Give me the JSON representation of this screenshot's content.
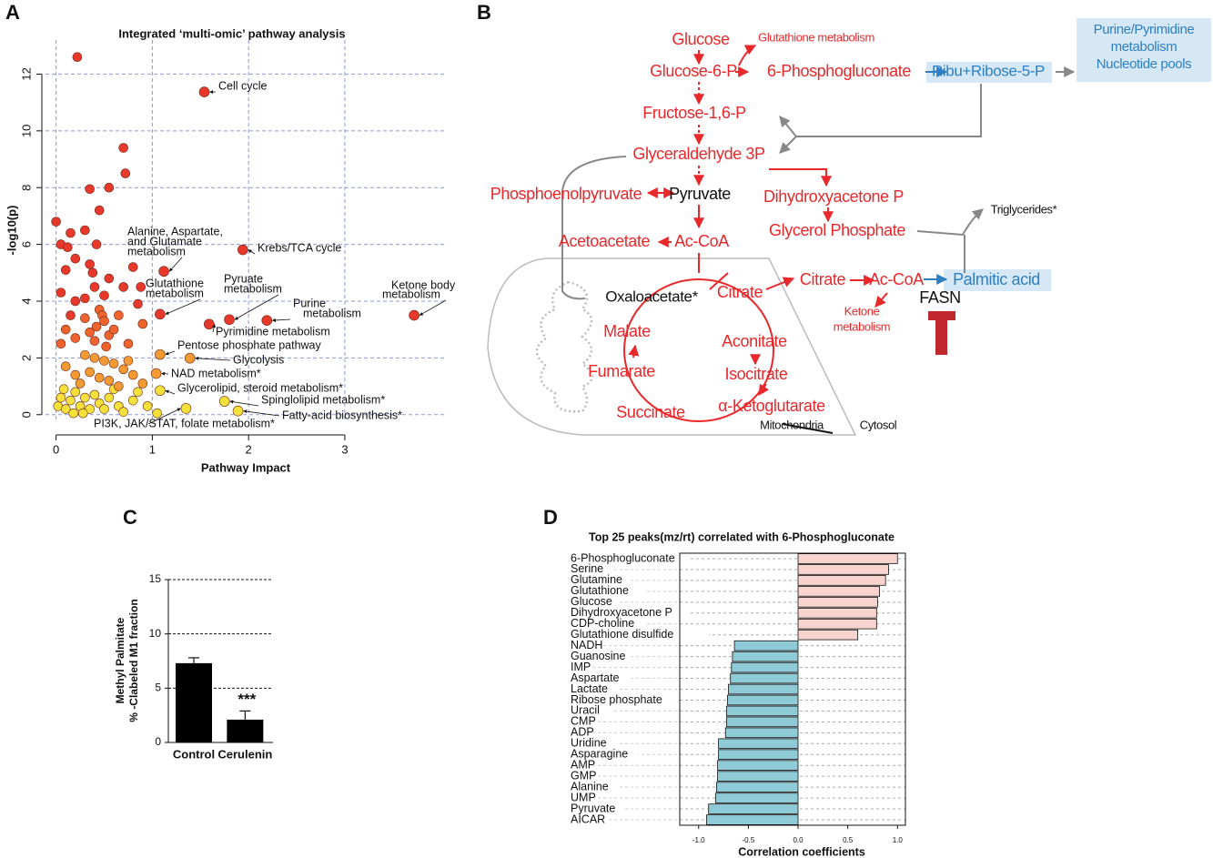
{
  "chart_data": [
    {
      "type": "scatter",
      "panel": "A",
      "title": "Integrated ‘multi-omic’ pathway analysis",
      "xlabel": "Pathway Impact",
      "ylabel": "-log10(p)",
      "xlim": [
        -0.11,
        4.05
      ],
      "ylim": [
        -0.2,
        13.2
      ],
      "xticks": [
        0,
        1,
        2,
        3
      ],
      "yticks": [
        0,
        2,
        4,
        6,
        8,
        10,
        12
      ],
      "grid": true,
      "series": [
        {
          "color": "#e8382b",
          "x": [
            0.22,
            0.7,
            0.72,
            0.55,
            0.35,
            0.45,
            0.42,
            0.3,
            0.15,
            0.0,
            0.05,
            0.12,
            0.2,
            0.1,
            0.35,
            0.38,
            0.55,
            0.8,
            0.88,
            0.7,
            0.5,
            0.3,
            0.05,
            0.2,
            0.15,
            0.4,
            0.85
          ],
          "values": [
            12.6,
            9.4,
            8.5,
            8.0,
            7.95,
            7.2,
            6.0,
            6.5,
            6.4,
            6.8,
            6.0,
            5.9,
            5.5,
            5.1,
            5.3,
            5.0,
            4.8,
            5.2,
            4.5,
            4.5,
            4.2,
            4.1,
            4.3,
            4.0,
            3.5,
            4.5,
            3.9
          ]
        },
        {
          "color": "#ee642c",
          "x": [
            0.45,
            0.48,
            0.5,
            0.42,
            0.35,
            0.55,
            0.6,
            0.65,
            0.3,
            0.1,
            0.2,
            0.05,
            0.75,
            0.4,
            0.52,
            0.9
          ],
          "values": [
            3.7,
            3.5,
            3.3,
            3.1,
            2.9,
            2.8,
            3.0,
            3.5,
            3.4,
            3.0,
            2.7,
            2.5,
            2.5,
            2.6,
            2.4,
            3.2
          ]
        },
        {
          "color": "#f39a33",
          "x": [
            0.3,
            0.4,
            0.5,
            0.6,
            0.7,
            0.35,
            0.45,
            0.55,
            0.2,
            0.1,
            0.65,
            0.8,
            0.25,
            0.9,
            0.75
          ],
          "values": [
            2.1,
            2.0,
            1.9,
            1.8,
            1.6,
            1.5,
            1.3,
            1.2,
            1.4,
            1.7,
            1.0,
            1.4,
            1.1,
            1.1,
            1.9
          ]
        },
        {
          "color": "#f5e13a",
          "x": [
            0.02,
            0.05,
            0.1,
            0.15,
            0.2,
            0.25,
            0.3,
            0.35,
            0.4,
            0.45,
            0.5,
            0.55,
            0.6,
            0.65,
            0.7,
            0.8,
            0.85,
            0.95,
            1.05,
            0.08,
            0.18,
            0.28
          ],
          "values": [
            0.3,
            0.6,
            0.2,
            0.5,
            0.8,
            0.3,
            0.6,
            0.2,
            0.7,
            0.4,
            0.2,
            0.6,
            0.9,
            0.3,
            0.1,
            0.5,
            0.8,
            0.3,
            0.05,
            0.9,
            0.05,
            0.05
          ]
        }
      ],
      "annotations": [
        {
          "text": [
            "Cell cycle"
          ],
          "x": 1.54,
          "y": 11.37,
          "color": "#e8382b"
        },
        {
          "text": [
            "Krebs/TCA cycle"
          ],
          "x": 1.94,
          "y": 5.81,
          "color": "#e8382b"
        },
        {
          "text": [
            "Alanine, Aspartate,",
            "and Glutamate",
            "metabolism"
          ],
          "x": 1.12,
          "y": 5.05,
          "color": "#e8382b"
        },
        {
          "text": [
            "Glutathione",
            "metabolism"
          ],
          "x": 1.08,
          "y": 3.54,
          "color": "#e8382b"
        },
        {
          "text": [
            "Pyruate",
            "metabolism"
          ],
          "x": 1.8,
          "y": 3.35,
          "color": "#e8382b"
        },
        {
          "text": [
            "Purine",
            "metabolism"
          ],
          "x": 2.19,
          "y": 3.32,
          "color": "#e8382b"
        },
        {
          "text": [
            "Ketone body",
            "metabolism"
          ],
          "x": 3.72,
          "y": 3.5,
          "color": "#e8382b"
        },
        {
          "text": [
            "Pyrimidine metabolism"
          ],
          "x": 1.59,
          "y": 3.19,
          "color": "#e8382b"
        },
        {
          "text": [
            "Pentose phosphate pathway"
          ],
          "x": 1.08,
          "y": 2.12,
          "color": "#f39a33"
        },
        {
          "text": [
            "Glycolysis"
          ],
          "x": 1.39,
          "y": 1.99,
          "color": "#f39a33"
        },
        {
          "text": [
            "NAD metabolism*"
          ],
          "x": 1.04,
          "y": 1.45,
          "color": "#f39a33"
        },
        {
          "text": [
            "Glycerolipid, steroid metabolism*"
          ],
          "x": 1.08,
          "y": 0.85,
          "color": "#f5e13a"
        },
        {
          "text": [
            "Spinglolipid metabolism*"
          ],
          "x": 1.75,
          "y": 0.47,
          "color": "#f5e13a"
        },
        {
          "text": [
            "Fatty-acid biosynthesis*"
          ],
          "x": 1.89,
          "y": 0.13,
          "color": "#f5e13a"
        },
        {
          "text": [
            "PI3K, JAK/STAT, folate metabolism*"
          ],
          "x": 1.35,
          "y": 0.22,
          "color": "#f5e13a"
        }
      ]
    },
    {
      "type": "bar",
      "panel": "C",
      "ylabel": [
        "Methyl Palmitate",
        "% -Clabeled M1 fraction"
      ],
      "categories": [
        "Control",
        "Cerulenin"
      ],
      "values": [
        7.3,
        2.1
      ],
      "errors": [
        0.5,
        0.8
      ],
      "color": "#000000",
      "ylim": [
        0,
        15
      ],
      "yticks": [
        0,
        5,
        10,
        15
      ],
      "grid": true,
      "annotation": "***"
    },
    {
      "type": "barh",
      "panel": "D",
      "title": "Top 25 peaks(mz/rt) correlated with 6-Phosphogluconate",
      "xlabel": "Correlation coefficients",
      "categories": [
        "6-Phosphogluconate",
        "Serine",
        "Glutamine",
        "Glutathione",
        "Glucose",
        "Dihydroxyacetone P",
        "CDP-choline",
        "Glutathione disulfide",
        "NADH",
        "Guanosine",
        "IMP",
        "Aspartate",
        "Lactate",
        "Ribose phosphate",
        "Uracil",
        "CMP",
        "ADP",
        "Uridine",
        "Asparagine",
        "AMP",
        "GMP",
        "Alanine",
        "UMP",
        "Pyruvate",
        "AICAR"
      ],
      "values": [
        1.0,
        0.91,
        0.88,
        0.82,
        0.8,
        0.79,
        0.79,
        0.6,
        -0.64,
        -0.66,
        -0.67,
        -0.68,
        -0.7,
        -0.71,
        -0.72,
        -0.72,
        -0.73,
        -0.8,
        -0.8,
        -0.81,
        -0.81,
        -0.82,
        -0.83,
        -0.9,
        -0.92
      ],
      "positive_color": "#f9d4cf",
      "negative_color": "#8ecbd6",
      "xlim": [
        -1.19,
        1.08
      ],
      "xticks": [
        {
          "value": -1,
          "label": "-1.0"
        },
        -0.5,
        {
          "value": 0,
          "label": "0.0"
        },
        0.5,
        {
          "value": 1,
          "label": "1.0"
        }
      ],
      "grid": true
    }
  ],
  "diagram": {
    "panel": "B",
    "nodes": [
      {
        "label": "Glucose",
        "color": "#e8282b"
      },
      {
        "label": "Glutathione metabolism",
        "color": "#e8282b"
      },
      {
        "label": "Glucose-6-P",
        "color": "#e8282b"
      },
      {
        "label": "6-Phosphogluconate",
        "color": "#e8282b"
      },
      {
        "label": "Ribu+Ribose-5-P",
        "color": "#2f7fc1"
      },
      {
        "label": [
          "Purine/Pyrimidine",
          "metabolism",
          "Nucleotide pools"
        ],
        "color": "#2f7fc1"
      },
      {
        "label": "Fructose-1,6-P",
        "color": "#e8282b"
      },
      {
        "label": "Glyceraldehyde 3P",
        "color": "#e8282b"
      },
      {
        "label": "Phosphoenolpyruvate",
        "color": "#e8282b"
      },
      {
        "label": "Pyruvate",
        "color": "#111111"
      },
      {
        "label": "Dihydroxyacetone P",
        "color": "#e8282b"
      },
      {
        "label": "Glycerol Phosphate",
        "color": "#e8282b"
      },
      {
        "label": "Triglycerides*",
        "color": "#111111"
      },
      {
        "label": "Acetoacetate",
        "color": "#e8282b"
      },
      {
        "label": "Ac-CoA",
        "color": "#e8282b"
      },
      {
        "label": "Oxaloacetate*",
        "color": "#111111"
      },
      {
        "label": "Citrate",
        "color": "#e8282b"
      },
      {
        "label": "Citrate",
        "color": "#e8282b"
      },
      {
        "label": "Ac-CoA",
        "color": "#e8282b"
      },
      {
        "label": "Palmitic acid",
        "color": "#2f7fc1"
      },
      {
        "label": "FASN",
        "color": "#111111"
      },
      {
        "label": [
          "Ketone",
          "metabolism"
        ],
        "color": "#e8282b"
      },
      {
        "label": "Malate",
        "color": "#e8282b"
      },
      {
        "label": "Aconitate",
        "color": "#e8282b"
      },
      {
        "label": "Fumarate",
        "color": "#e8282b"
      },
      {
        "label": "Isocitrate",
        "color": "#e8282b"
      },
      {
        "label": "Succinate",
        "color": "#e8282b"
      },
      {
        "label": "α-Ketoglutarate",
        "color": "#e8282b"
      },
      {
        "label": "Mitochondria",
        "color": "#111111"
      },
      {
        "label": "Cytosol",
        "color": "#111111"
      }
    ]
  }
}
